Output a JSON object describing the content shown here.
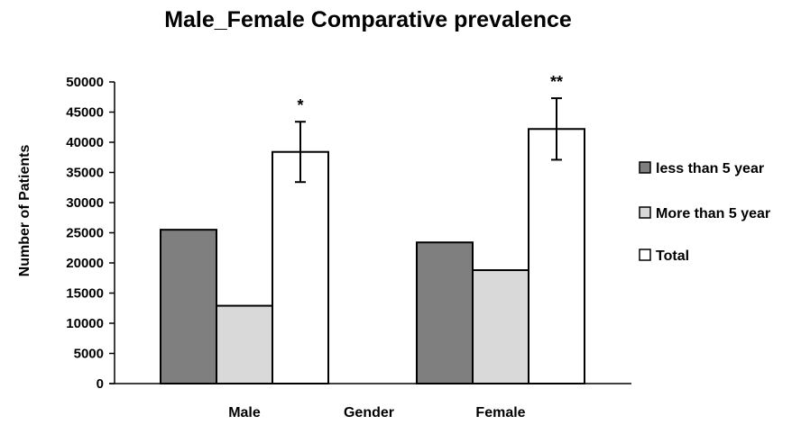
{
  "chart_data": {
    "type": "bar",
    "title": "Male_Female Comparative prevalence",
    "xlabel": "Gender",
    "ylabel": "Number of  Patients",
    "categories": [
      "Male",
      "Female"
    ],
    "series": [
      {
        "name": "less than 5 year",
        "values": [
          25500,
          23400
        ],
        "color": "#7f7f7f"
      },
      {
        "name": "More than 5 year",
        "values": [
          12900,
          18800
        ],
        "color": "#d9d9d9"
      },
      {
        "name": "Total",
        "values": [
          38400,
          42200
        ],
        "color": "#ffffff",
        "error": [
          5000,
          5100
        ]
      }
    ],
    "annotations": [
      "*",
      "**"
    ],
    "ylim": [
      0,
      50000
    ],
    "yticks": [
      0,
      5000,
      10000,
      15000,
      20000,
      25000,
      30000,
      35000,
      40000,
      45000,
      50000
    ],
    "grid": false,
    "legend_position": "right"
  }
}
